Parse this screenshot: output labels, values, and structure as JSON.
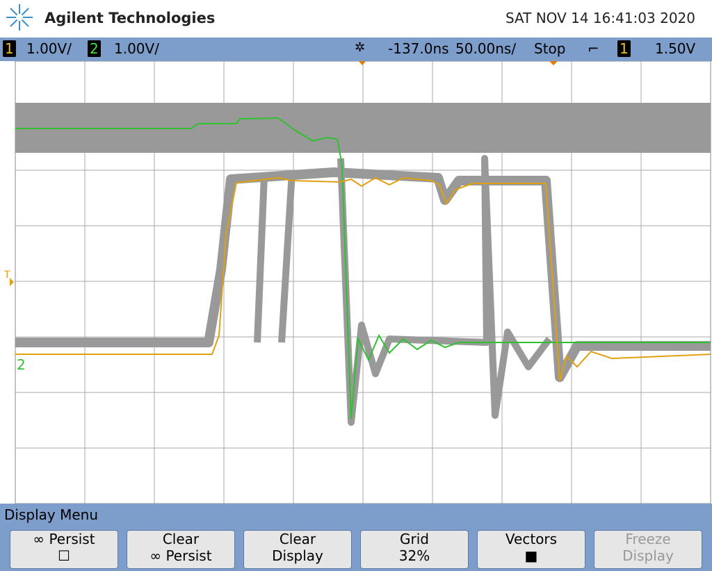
{
  "header": {
    "brand": "Agilent Technologies",
    "datetime": "SAT NOV 14 16:41:03 2020"
  },
  "status_bar": {
    "ch1_label": "1",
    "ch1_scale": "1.00V/",
    "ch2_label": "2",
    "ch2_scale": "1.00V/",
    "delay": "-137.0ns",
    "timebase": "50.00ns/",
    "run_state": "Stop",
    "trigger_source": "1",
    "trigger_level": "1.50V"
  },
  "markers": {
    "trigger": "T",
    "ch2_ground": "2"
  },
  "menu": {
    "title": "Display Menu",
    "buttons": [
      {
        "line1": "∞ Persist",
        "line2": "☐"
      },
      {
        "line1": "Clear",
        "line2": "∞ Persist"
      },
      {
        "line1": "Clear",
        "line2": "Display"
      },
      {
        "line1": "Grid",
        "line2": "32%"
      },
      {
        "line1": "Vectors",
        "line2": "■"
      },
      {
        "line1": "Freeze",
        "line2": "Display"
      }
    ]
  }
}
